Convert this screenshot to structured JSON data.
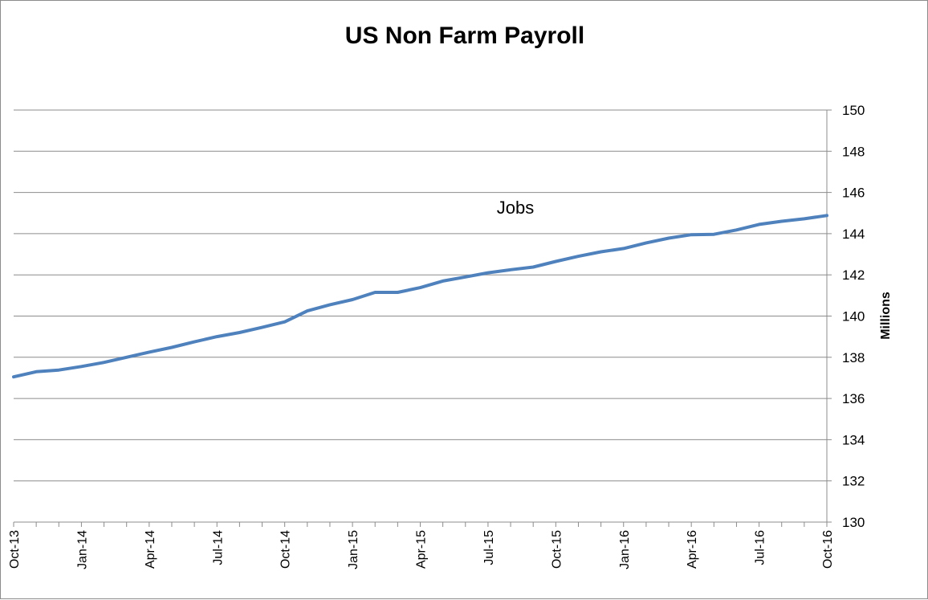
{
  "chart_data": {
    "type": "line",
    "title": "US Non Farm Payroll",
    "ylabel": "Millions",
    "ylim": [
      130,
      150
    ],
    "yticks": [
      130,
      132,
      134,
      136,
      138,
      140,
      142,
      144,
      146,
      148,
      150
    ],
    "grid": true,
    "y_axis_side": "right",
    "x_tick_labels": [
      "Oct-13",
      "Jan-14",
      "Apr-14",
      "Jul-14",
      "Oct-14",
      "Jan-15",
      "Apr-15",
      "Jul-15",
      "Oct-15",
      "Jan-16",
      "Apr-16",
      "Jul-16",
      "Oct-16"
    ],
    "x": [
      "Oct-13",
      "Nov-13",
      "Dec-13",
      "Jan-14",
      "Feb-14",
      "Mar-14",
      "Apr-14",
      "May-14",
      "Jun-14",
      "Jul-14",
      "Aug-14",
      "Sep-14",
      "Oct-14",
      "Nov-14",
      "Dec-14",
      "Jan-15",
      "Feb-15",
      "Mar-15",
      "Apr-15",
      "May-15",
      "Jun-15",
      "Jul-15",
      "Aug-15",
      "Sep-15",
      "Oct-15",
      "Nov-15",
      "Dec-15",
      "Jan-16",
      "Feb-16",
      "Mar-16",
      "Apr-16",
      "May-16",
      "Jun-16",
      "Jul-16",
      "Aug-16",
      "Sep-16",
      "Oct-16"
    ],
    "series": [
      {
        "name": "Jobs",
        "color": "#4f81bd",
        "values": [
          137.05,
          137.3,
          137.38,
          137.55,
          137.75,
          138.0,
          138.25,
          138.48,
          138.75,
          139.0,
          139.2,
          139.45,
          139.72,
          140.25,
          140.55,
          140.8,
          141.15,
          141.15,
          141.38,
          141.7,
          141.9,
          142.1,
          142.25,
          142.38,
          142.65,
          142.9,
          143.12,
          143.28,
          143.55,
          143.78,
          143.95,
          143.97,
          144.18,
          144.45,
          144.6,
          144.72,
          144.88
        ]
      }
    ]
  }
}
